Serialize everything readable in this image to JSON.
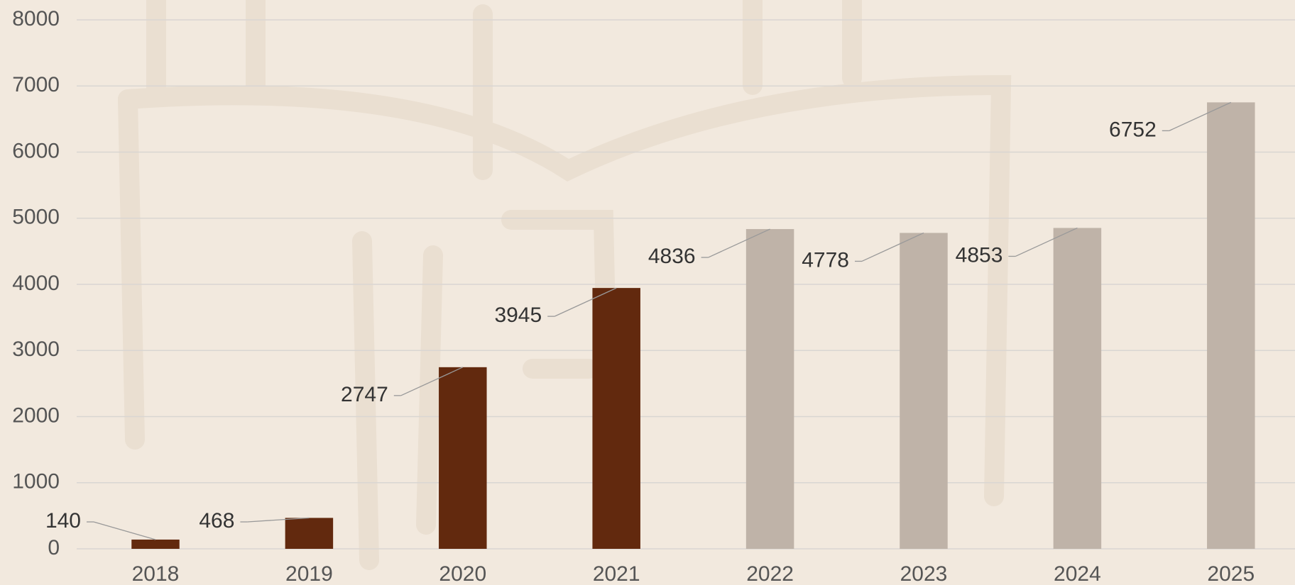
{
  "chart_data": {
    "type": "bar",
    "categories": [
      "2018",
      "2019",
      "2020",
      "2021",
      "2022",
      "2023",
      "2024",
      "2025"
    ],
    "values": [
      140,
      468,
      2747,
      3945,
      4836,
      4778,
      4853,
      6752
    ],
    "colors": [
      "#62290e",
      "#62290e",
      "#62290e",
      "#62290e",
      "#bfb3a8",
      "#bfb3a8",
      "#bfb3a8",
      "#bfb3a8"
    ],
    "ylim": [
      0,
      8000
    ],
    "yticks": [
      0,
      1000,
      2000,
      3000,
      4000,
      5000,
      6000,
      7000,
      8000
    ],
    "grid": true
  }
}
